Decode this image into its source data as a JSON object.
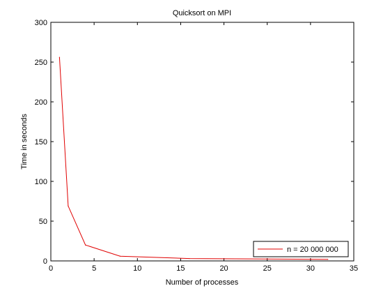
{
  "chart_data": {
    "type": "line",
    "title": "Quicksort on MPI",
    "xlabel": "Number of processes",
    "ylabel": "Time in seconds",
    "xlim": [
      0,
      35
    ],
    "ylim": [
      0,
      300
    ],
    "xticks": [
      0,
      5,
      10,
      15,
      20,
      25,
      30,
      35
    ],
    "yticks": [
      0,
      50,
      100,
      150,
      200,
      250,
      300
    ],
    "xtick_labels": [
      "0",
      "5",
      "10",
      "15",
      "20",
      "25",
      "30",
      "35"
    ],
    "ytick_labels": [
      "0",
      "50",
      "100",
      "150",
      "200",
      "250",
      "300"
    ],
    "grid": false,
    "legend_position": "bottom-right",
    "series": [
      {
        "name": "n = 20 000 000",
        "color": "#e00000",
        "x": [
          1,
          2,
          4,
          8,
          16,
          32
        ],
        "y": [
          256,
          69,
          20,
          6,
          3,
          2
        ]
      }
    ]
  }
}
